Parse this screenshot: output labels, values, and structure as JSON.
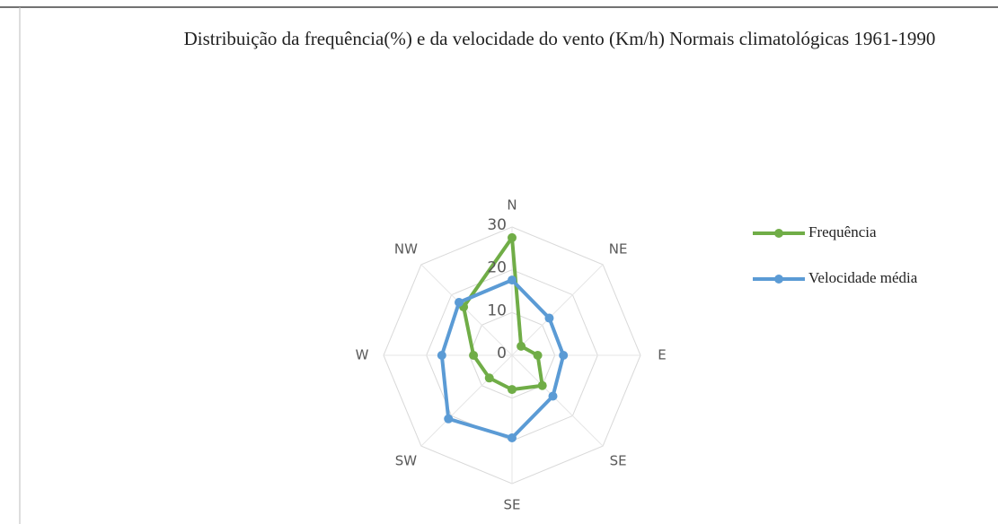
{
  "chart_data": {
    "type": "radar",
    "title": "Distribuição da frequência(%) e da velocidade do vento (Km/h) Normais climatológicas 1961-1990",
    "categories": [
      "N",
      "NE",
      "E",
      "SE",
      "SE",
      "SW",
      "W",
      "NW"
    ],
    "series": [
      {
        "name": "Frequência",
        "color": "#70ad47",
        "values": [
          27.5,
          3,
          6,
          10,
          8,
          7.5,
          9,
          16
        ]
      },
      {
        "name": "Velocidade média",
        "color": "#5b9bd5",
        "values": [
          17.6,
          12.3,
          12,
          13.5,
          19.3,
          21,
          16.4,
          17.5
        ]
      }
    ],
    "ylim": [
      0,
      30
    ],
    "yticks": [
      0,
      10,
      20,
      30
    ],
    "grid": true,
    "legend": "right"
  }
}
